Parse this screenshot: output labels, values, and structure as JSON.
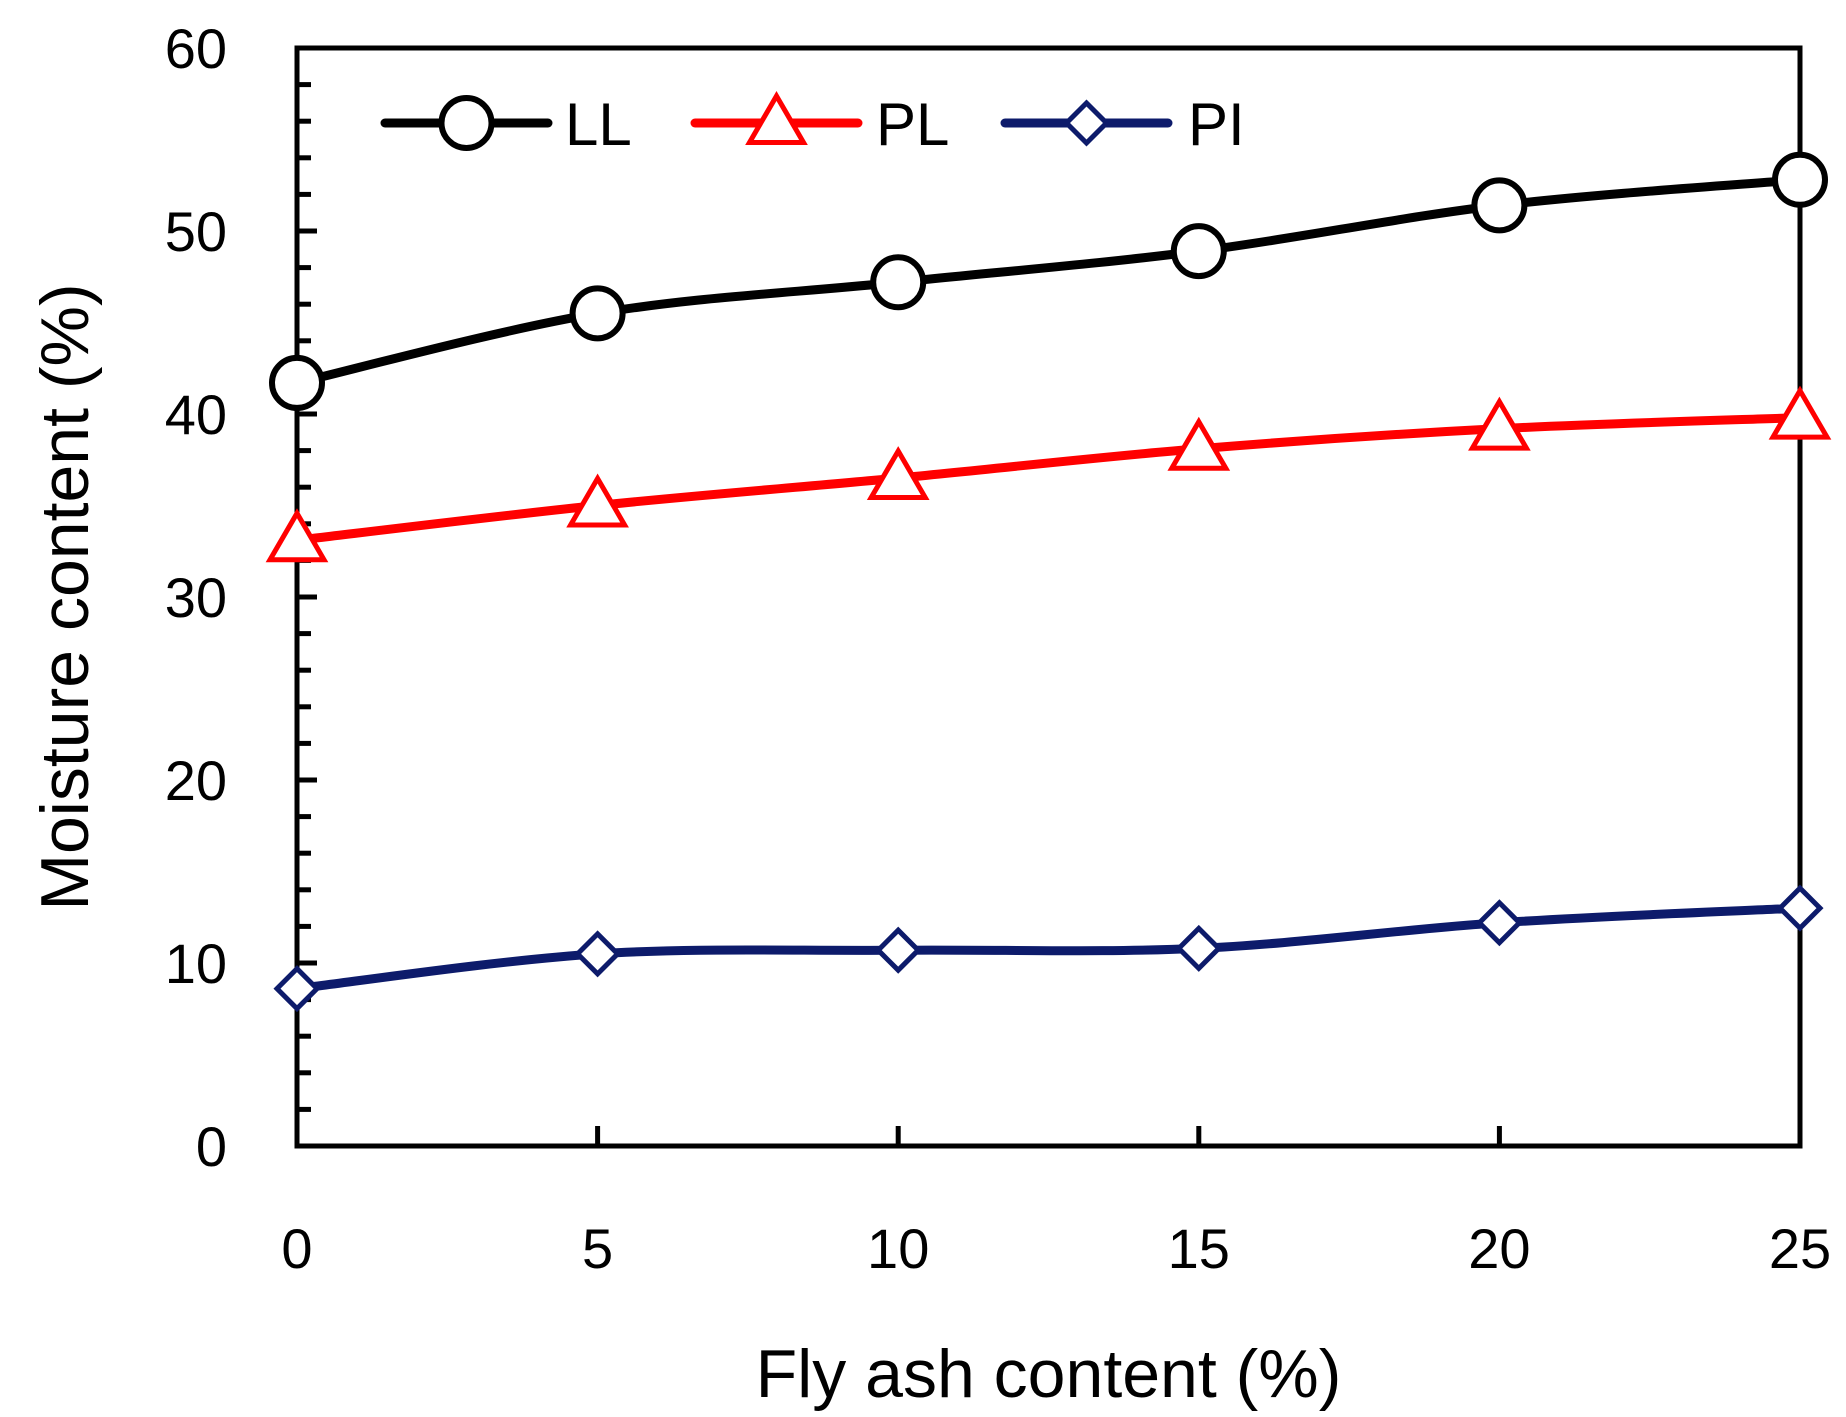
{
  "chart_data": {
    "type": "line",
    "title": "",
    "xlabel": "Fly ash content (%)",
    "ylabel": "Moisture content (%)",
    "xlim": [
      0,
      25
    ],
    "ylim": [
      0,
      60
    ],
    "xticks": [
      0,
      5,
      10,
      15,
      20,
      25
    ],
    "xtick_labels": [
      "0",
      "5",
      "10",
      "15",
      "20",
      "25"
    ],
    "yticks": [
      0,
      10,
      20,
      30,
      40,
      50,
      60
    ],
    "ytick_labels": [
      "0",
      "10",
      "20",
      "30",
      "40",
      "50",
      "60"
    ],
    "y_minor_step": 2,
    "grid": false,
    "legend_position": "top-left",
    "x": [
      0,
      5,
      10,
      15,
      20,
      25
    ],
    "series": [
      {
        "name": "LL",
        "values": [
          41.7,
          45.5,
          47.2,
          48.9,
          51.4,
          52.8
        ],
        "color": "#000000",
        "marker": "circle"
      },
      {
        "name": "PL",
        "values": [
          33.1,
          35.0,
          36.5,
          38.1,
          39.2,
          39.8
        ],
        "color": "#ff0000",
        "marker": "triangle"
      },
      {
        "name": "PI",
        "values": [
          8.6,
          10.5,
          10.7,
          10.8,
          12.2,
          13.0
        ],
        "color": "#0d1b6b",
        "marker": "diamond"
      }
    ]
  }
}
